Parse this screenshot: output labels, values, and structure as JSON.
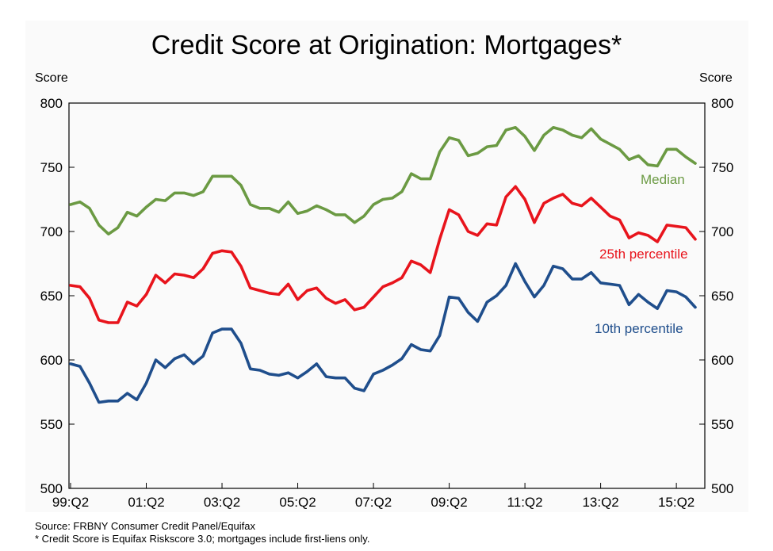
{
  "chart_data": {
    "type": "line",
    "title": "Credit Score at Origination: Mortgages*",
    "ylabel": "Score",
    "ylabel_right": "Score",
    "ylim": [
      500,
      800
    ],
    "yticks": [
      "500",
      "550",
      "600",
      "650",
      "700",
      "750",
      "800"
    ],
    "xtick_labels": [
      "99:Q2",
      "01:Q2",
      "03:Q2",
      "05:Q2",
      "07:Q2",
      "09:Q2",
      "11:Q2",
      "13:Q2",
      "15:Q2"
    ],
    "x_start": "1999:Q2",
    "x_end": "2015:Q4",
    "grid": false,
    "series": [
      {
        "name": "Median",
        "color": "#6b9a43",
        "values": [
          721,
          723,
          718,
          705,
          698,
          703,
          715,
          712,
          719,
          725,
          724,
          730,
          730,
          728,
          731,
          743,
          743,
          743,
          736,
          721,
          718,
          718,
          715,
          723,
          714,
          716,
          720,
          717,
          713,
          713,
          707,
          712,
          721,
          725,
          726,
          731,
          745,
          741,
          741,
          762,
          773,
          771,
          759,
          761,
          766,
          767,
          779,
          781,
          774,
          763,
          775,
          781,
          779,
          775,
          773,
          780,
          772,
          768,
          764,
          756,
          759,
          752,
          751,
          764,
          764,
          758,
          753
        ]
      },
      {
        "name": "25th percentile",
        "color": "#e8141c",
        "values": [
          658,
          657,
          648,
          631,
          629,
          629,
          645,
          642,
          651,
          666,
          660,
          667,
          666,
          664,
          671,
          683,
          685,
          684,
          673,
          656,
          654,
          652,
          651,
          659,
          647,
          654,
          656,
          648,
          644,
          647,
          639,
          641,
          649,
          657,
          660,
          664,
          677,
          674,
          668,
          694,
          717,
          713,
          700,
          697,
          706,
          705,
          727,
          735,
          725,
          707,
          722,
          726,
          729,
          722,
          720,
          726,
          719,
          712,
          709,
          695,
          699,
          697,
          692,
          705,
          704,
          703,
          694
        ]
      },
      {
        "name": "10th percentile",
        "color": "#1f4e8c",
        "values": [
          597,
          595,
          582,
          567,
          568,
          568,
          574,
          569,
          582,
          600,
          594,
          601,
          604,
          597,
          603,
          621,
          624,
          624,
          613,
          593,
          592,
          589,
          588,
          590,
          586,
          591,
          597,
          587,
          586,
          586,
          578,
          576,
          589,
          592,
          596,
          601,
          612,
          608,
          607,
          619,
          649,
          648,
          637,
          630,
          645,
          650,
          658,
          675,
          661,
          649,
          658,
          673,
          671,
          663,
          663,
          668,
          660,
          659,
          658,
          643,
          651,
          645,
          640,
          654,
          653,
          649,
          641
        ]
      }
    ]
  },
  "notes": {
    "source": "Source: FRBNY Consumer Credit Panel/Equifax",
    "footnote": "* Credit Score is Equifax Riskscore 3.0; mortgages include first-liens only."
  }
}
